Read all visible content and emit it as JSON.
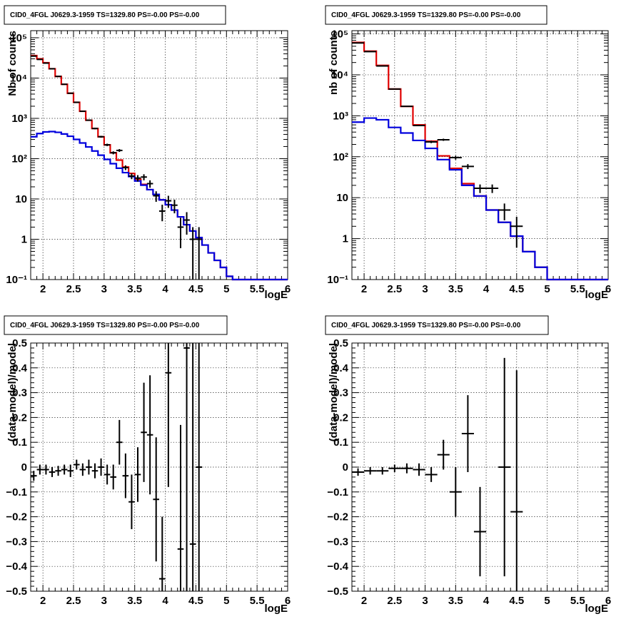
{
  "chart_data": [
    {
      "type": "line",
      "title": "CID0_4FGL J0629.3-1959 TS=1329.80 PS=-0.00 PS=-0.00",
      "xlabel": "logE",
      "ylabel": "Nb of counts",
      "xlim": [
        1.8,
        6.0
      ],
      "ylim": [
        0.1,
        150000
      ],
      "yscale": "log",
      "grid": true,
      "xticks": [
        "2",
        "2.5",
        "3",
        "3.5",
        "4",
        "4.5",
        "5",
        "5.5",
        "6"
      ],
      "yticks": [
        "10⁻¹",
        "1",
        "10",
        "10²",
        "10³",
        "10⁴",
        "10⁵"
      ],
      "bin_edges": [
        1.8,
        1.9,
        2.0,
        2.1,
        2.2,
        2.3,
        2.4,
        2.5,
        2.6,
        2.7,
        2.8,
        2.9,
        3.0,
        3.1,
        3.2,
        3.3,
        3.4,
        3.5,
        3.6,
        3.7,
        3.8,
        3.9,
        4.0,
        4.1,
        4.2,
        4.3,
        4.4,
        4.5,
        4.6,
        4.7,
        4.8,
        4.9,
        5.0,
        5.1,
        5.2,
        5.3,
        5.4,
        5.5,
        5.6,
        5.7,
        5.8,
        5.9,
        6.0
      ],
      "series": [
        {
          "color": "#e00000",
          "values": [
            36000,
            30000,
            24000,
            17000,
            11000,
            7000,
            4200,
            2500,
            1500,
            900,
            560,
            350,
            220,
            140,
            92,
            62,
            43,
            31,
            23,
            17,
            13,
            9.5,
            7.2,
            5.3,
            3.6,
            2.3,
            1.6,
            1.1,
            0.72,
            0.46,
            0.3,
            0.2,
            0.12,
            0.1,
            0.1,
            0.1,
            0.1,
            0.1,
            0.1,
            0.1,
            0.1,
            0.1
          ]
        },
        {
          "color": "#0000dd",
          "values": [
            350,
            420,
            460,
            470,
            450,
            410,
            360,
            300,
            245,
            195,
            155,
            122,
            96,
            75,
            58,
            45,
            36,
            28,
            22,
            17,
            13,
            9.5,
            7.2,
            5.3,
            3.6,
            2.3,
            1.6,
            1.1,
            0.72,
            0.46,
            0.3,
            0.2,
            0.12,
            0.1,
            0.1,
            0.1,
            0.1,
            0.1,
            0.1,
            0.1,
            0.1,
            0.1
          ]
        }
      ],
      "data_points": [
        {
          "x": 1.85,
          "y": 35000,
          "err": 190
        },
        {
          "x": 1.95,
          "y": 29000,
          "err": 170
        },
        {
          "x": 2.05,
          "y": 23500,
          "err": 150
        },
        {
          "x": 2.15,
          "y": 17000,
          "err": 130
        },
        {
          "x": 2.25,
          "y": 11000,
          "err": 105
        },
        {
          "x": 2.35,
          "y": 7000,
          "err": 84
        },
        {
          "x": 2.45,
          "y": 4200,
          "err": 65
        },
        {
          "x": 2.55,
          "y": 2500,
          "err": 50
        },
        {
          "x": 2.65,
          "y": 1500,
          "err": 39
        },
        {
          "x": 2.75,
          "y": 900,
          "err": 30
        },
        {
          "x": 2.85,
          "y": 560,
          "err": 24
        },
        {
          "x": 2.95,
          "y": 350,
          "err": 19
        },
        {
          "x": 3.05,
          "y": 220,
          "err": 15
        },
        {
          "x": 3.15,
          "y": 140,
          "err": 12
        },
        {
          "x": 3.25,
          "y": 160,
          "err": 13
        },
        {
          "x": 3.35,
          "y": 60,
          "err": 8
        },
        {
          "x": 3.45,
          "y": 37,
          "err": 6
        },
        {
          "x": 3.55,
          "y": 33,
          "err": 6
        },
        {
          "x": 3.65,
          "y": 35,
          "err": 6
        },
        {
          "x": 3.75,
          "y": 24,
          "err": 5
        },
        {
          "x": 3.85,
          "y": 12,
          "err": 3.5
        },
        {
          "x": 3.95,
          "y": 5,
          "err": 2.2
        },
        {
          "x": 4.05,
          "y": 9,
          "err": 3
        },
        {
          "x": 4.15,
          "y": 7,
          "err": 2.6
        },
        {
          "x": 4.25,
          "y": 2,
          "err": 1.4
        },
        {
          "x": 4.35,
          "y": 3,
          "err": 1.7
        },
        {
          "x": 4.45,
          "y": 1,
          "err": 1
        },
        {
          "x": 4.55,
          "y": 1,
          "err": 1
        }
      ]
    },
    {
      "type": "line",
      "title": "CID0_4FGL J0629.3-1959 TS=1329.80 PS=-0.00 PS=-0.00",
      "xlabel": "logE",
      "ylabel": "nb of counts",
      "xlim": [
        1.8,
        6.0
      ],
      "ylim": [
        0.1,
        120000
      ],
      "yscale": "log",
      "grid": true,
      "xticks": [
        "2",
        "2.5",
        "3",
        "3.5",
        "4",
        "4.5",
        "5",
        "5.5",
        "6"
      ],
      "yticks": [
        "10⁻¹",
        "1",
        "10",
        "10²",
        "10³",
        "10⁴",
        "10⁵"
      ],
      "bin_edges": [
        1.8,
        2.0,
        2.2,
        2.4,
        2.6,
        2.8,
        3.0,
        3.2,
        3.4,
        3.6,
        3.8,
        4.0,
        4.2,
        4.4,
        4.6,
        4.8,
        5.0,
        5.2,
        5.4,
        5.6,
        5.8,
        6.0
      ],
      "series": [
        {
          "color": "#e00000",
          "values": [
            62000,
            38000,
            17000,
            4500,
            1700,
            600,
            240,
            105,
            52,
            22,
            11,
            5,
            2.5,
            1.15,
            0.48,
            0.2,
            0.1,
            0.1,
            0.1,
            0.1,
            0.1
          ]
        },
        {
          "color": "#0000dd",
          "values": [
            700,
            880,
            800,
            520,
            380,
            250,
            160,
            85,
            48,
            20,
            11,
            5,
            2.5,
            1.15,
            0.48,
            0.2,
            0.1,
            0.1,
            0.1,
            0.1,
            0.1
          ]
        }
      ],
      "data_points": [
        {
          "x": 1.9,
          "y": 60000,
          "err": 245
        },
        {
          "x": 2.1,
          "y": 37000,
          "err": 190
        },
        {
          "x": 2.3,
          "y": 16500,
          "err": 130
        },
        {
          "x": 2.5,
          "y": 4500,
          "err": 67
        },
        {
          "x": 2.7,
          "y": 1700,
          "err": 41
        },
        {
          "x": 2.9,
          "y": 580,
          "err": 24
        },
        {
          "x": 3.1,
          "y": 230,
          "err": 15
        },
        {
          "x": 3.3,
          "y": 260,
          "err": 16
        },
        {
          "x": 3.5,
          "y": 95,
          "err": 10
        },
        {
          "x": 3.7,
          "y": 58,
          "err": 8
        },
        {
          "x": 3.9,
          "y": 17,
          "err": 4
        },
        {
          "x": 4.1,
          "y": 17,
          "err": 4
        },
        {
          "x": 4.3,
          "y": 5,
          "err": 2.2
        },
        {
          "x": 4.5,
          "y": 2,
          "err": 1.4
        }
      ]
    },
    {
      "type": "scatter",
      "title": "CID0_4FGL J0629.3-1959 TS=1329.80 PS=-0.00 PS=-0.00",
      "xlabel": "logE",
      "ylabel": "(data-model)/model",
      "xlim": [
        1.8,
        6.0
      ],
      "ylim": [
        -0.5,
        0.5
      ],
      "grid": true,
      "xticks": [
        "2",
        "2.5",
        "3",
        "3.5",
        "4",
        "4.5",
        "5",
        "5.5",
        "6"
      ],
      "yticks": [
        "−0.5",
        "−0.4",
        "−0.3",
        "−0.2",
        "−0.1",
        "0",
        "0.1",
        "0.2",
        "0.3",
        "0.4",
        "0.5"
      ],
      "points": [
        {
          "x": 1.85,
          "y": -0.035,
          "err": 0.02
        },
        {
          "x": 1.95,
          "y": -0.01,
          "err": 0.02
        },
        {
          "x": 2.05,
          "y": -0.01,
          "err": 0.02
        },
        {
          "x": 2.15,
          "y": -0.02,
          "err": 0.02
        },
        {
          "x": 2.25,
          "y": -0.015,
          "err": 0.02
        },
        {
          "x": 2.35,
          "y": -0.01,
          "err": 0.02
        },
        {
          "x": 2.45,
          "y": -0.015,
          "err": 0.025
        },
        {
          "x": 2.55,
          "y": 0.01,
          "err": 0.02
        },
        {
          "x": 2.65,
          "y": -0.01,
          "err": 0.025
        },
        {
          "x": 2.75,
          "y": 0.0,
          "err": 0.03
        },
        {
          "x": 2.85,
          "y": -0.015,
          "err": 0.03
        },
        {
          "x": 2.95,
          "y": 0.0,
          "err": 0.035
        },
        {
          "x": 3.05,
          "y": -0.03,
          "err": 0.04
        },
        {
          "x": 3.15,
          "y": -0.04,
          "err": 0.05
        },
        {
          "x": 3.25,
          "y": 0.1,
          "err": 0.09
        },
        {
          "x": 3.35,
          "y": -0.035,
          "err": 0.09
        },
        {
          "x": 3.45,
          "y": -0.14,
          "err": 0.11
        },
        {
          "x": 3.55,
          "y": -0.03,
          "err": 0.11
        },
        {
          "x": 3.65,
          "y": 0.14,
          "err": 0.2
        },
        {
          "x": 3.75,
          "y": 0.13,
          "err": 0.24
        },
        {
          "x": 3.85,
          "y": -0.13,
          "err": 0.25
        },
        {
          "x": 3.95,
          "y": -0.45,
          "err": 0.25
        },
        {
          "x": 4.05,
          "y": 0.38,
          "err": 0.46
        },
        {
          "x": 4.25,
          "y": -0.33,
          "err": 0.5
        },
        {
          "x": 4.35,
          "y": 0.48,
          "err": 1.0
        },
        {
          "x": 4.45,
          "y": -0.31,
          "err": 1.0
        },
        {
          "x": 4.55,
          "y": 0.0,
          "err": 1.0
        }
      ]
    },
    {
      "type": "scatter",
      "title": "CID0_4FGL J0629.3-1959 TS=1329.80 PS=-0.00 PS=-0.00",
      "xlabel": "logE",
      "ylabel": "(data-model)/model",
      "xlim": [
        1.8,
        6.0
      ],
      "ylim": [
        -0.5,
        0.5
      ],
      "grid": true,
      "xticks": [
        "2",
        "2.5",
        "3",
        "3.5",
        "4",
        "4.5",
        "5",
        "5.5",
        "6"
      ],
      "yticks": [
        "−0.5",
        "−0.4",
        "−0.3",
        "−0.2",
        "−0.1",
        "0",
        "0.1",
        "0.2",
        "0.3",
        "0.4",
        "0.5"
      ],
      "points": [
        {
          "x": 1.9,
          "y": -0.02,
          "err": 0.015
        },
        {
          "x": 2.1,
          "y": -0.015,
          "err": 0.015
        },
        {
          "x": 2.3,
          "y": -0.015,
          "err": 0.015
        },
        {
          "x": 2.5,
          "y": -0.005,
          "err": 0.015
        },
        {
          "x": 2.7,
          "y": -0.005,
          "err": 0.02
        },
        {
          "x": 2.9,
          "y": -0.01,
          "err": 0.025
        },
        {
          "x": 3.1,
          "y": -0.03,
          "err": 0.03
        },
        {
          "x": 3.3,
          "y": 0.05,
          "err": 0.06
        },
        {
          "x": 3.5,
          "y": -0.1,
          "err": 0.1
        },
        {
          "x": 3.7,
          "y": 0.135,
          "err": 0.155
        },
        {
          "x": 3.9,
          "y": -0.26,
          "err": 0.18
        },
        {
          "x": 4.3,
          "y": 0.0,
          "err": 0.44
        },
        {
          "x": 4.5,
          "y": -0.18,
          "err": 0.57
        }
      ]
    }
  ]
}
